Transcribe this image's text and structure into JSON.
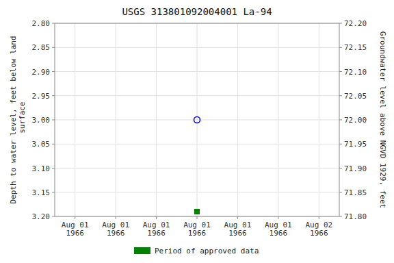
{
  "chart_data": {
    "type": "scatter",
    "title": "USGS 313801092004001 La-94",
    "ylabel": "Depth to water level, feet below land\n surface",
    "y2label": "Groundwater level above NGVD 1929, feet",
    "categories": [
      "Aug 01\n1966",
      "Aug 01\n1966",
      "Aug 01\n1966",
      "Aug 01\n1966",
      "Aug 01\n1966",
      "Aug 01\n1966",
      "Aug 02\n1966"
    ],
    "series": [
      {
        "name": "Period of approved data",
        "color": "#008000",
        "marker": "square",
        "values": [
          null,
          null,
          null,
          3.19,
          null,
          null,
          null
        ]
      },
      {
        "color": "#0000cc",
        "marker": "open-circle",
        "values": [
          null,
          null,
          null,
          3.0,
          null,
          null,
          null
        ]
      }
    ],
    "ylim": [
      3.2,
      2.8
    ],
    "yticks": [
      {
        "value": 2.8,
        "label": "2.80"
      },
      2.85,
      {
        "value": 2.9,
        "label": "2.90"
      },
      2.95,
      {
        "value": 3.0,
        "label": "3.00"
      },
      3.05,
      {
        "value": 3.1,
        "label": "3.10"
      },
      3.15,
      {
        "value": 3.2,
        "label": "3.20"
      }
    ],
    "y2lim": [
      71.8,
      72.2
    ],
    "y2ticks": [
      {
        "value": 71.8,
        "label": "71.80"
      },
      71.85,
      {
        "value": 71.9,
        "label": "71.90"
      },
      71.95,
      {
        "value": 72.0,
        "label": "72.00"
      },
      72.05,
      {
        "value": 72.1,
        "label": "72.10"
      },
      72.15,
      {
        "value": 72.2,
        "label": "72.20"
      }
    ],
    "grid": true,
    "legend": "bottom"
  }
}
